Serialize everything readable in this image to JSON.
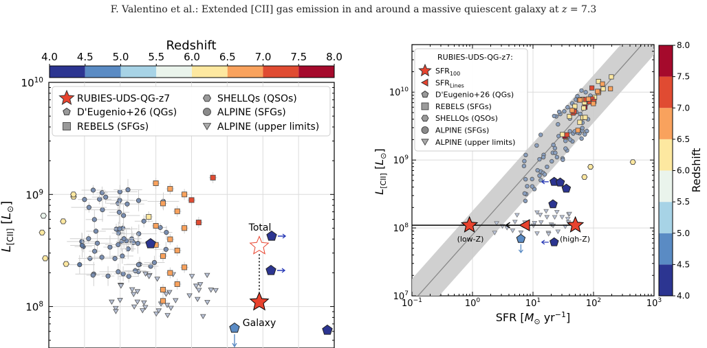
{
  "header": {
    "running_title": "F. Valentino et al.: Extended [CII] gas emission in and around a massive quiescent galaxy at",
    "z_symbol": "z",
    "z_value": "= 7.3"
  },
  "colors": {
    "redshift_bins": [
      "#2c3591",
      "#5a8bc4",
      "#a7d3e6",
      "#eaf4ec",
      "#fde8a0",
      "#f9a25d",
      "#e04b32",
      "#a50a2c"
    ],
    "agn_blue": "#2a3bb7",
    "band_gray": "#c8c8c8",
    "star_red": "#e8432e"
  },
  "chart_data": [
    {
      "id": "left",
      "type": "scatter",
      "title": "",
      "ylabel": "L_[CII] [L_⊙]",
      "yscale": "log",
      "ylim_exp": [
        7.63,
        10.0
      ],
      "yticks": [
        {
          "exp": 8,
          "label": "10",
          "sup": "8"
        },
        {
          "exp": 9,
          "label": "10",
          "sup": "9"
        },
        {
          "exp": 10,
          "label": "10",
          "sup": "10"
        }
      ],
      "colorbar": {
        "title": "Redshift",
        "ticks": [
          "4.0",
          "4.5",
          "5.0",
          "5.5",
          "6.0",
          "6.5",
          "7.0",
          "7.5",
          "8.0"
        ],
        "orientation": "horizontal"
      },
      "legend": {
        "position": "top",
        "entries": [
          {
            "label": "RUBIES-UDS-QG-z7",
            "marker": "star"
          },
          {
            "label": "D'Eugenio+26 (QGs)",
            "marker": "pentagon"
          },
          {
            "label": "REBELS (SFGs)",
            "marker": "square"
          },
          {
            "label": "SHELLQs (QSOs)",
            "marker": "hexagon"
          },
          {
            "label": "ALPINE (SFGs)",
            "marker": "circle"
          },
          {
            "label": "ALPINE (upper limits)",
            "marker": "triangle"
          }
        ]
      },
      "annotations": [
        {
          "text": "Total",
          "logL": 8.54
        },
        {
          "text": "Galaxy",
          "logL": 8.04
        }
      ],
      "rubies": {
        "total_logL": 8.54,
        "galaxy_logL": 8.04
      },
      "shellqs": [
        {
          "z": 6.1,
          "logL": 8.76
        },
        {
          "z": 6.2,
          "logL": 8.98
        },
        {
          "z": 6.3,
          "logL": 9.0
        },
        {
          "z": 6.1,
          "logL": 8.66
        },
        {
          "z": 6.2,
          "logL": 8.43
        },
        {
          "z": 6.2,
          "logL": 8.38
        },
        {
          "z": 5.9,
          "logL": 8.81
        }
      ]
    },
    {
      "id": "right",
      "type": "scatter",
      "title": "",
      "xlabel": "SFR [M_⊙ yr^-1]",
      "ylabel": "L_[CII] [L_⊙]",
      "xscale": "log",
      "yscale": "log",
      "xlim_exp": [
        -1,
        3
      ],
      "ylim_exp": [
        7,
        10.7
      ],
      "xticks": [
        {
          "exp": -1,
          "label": "10",
          "sup": "−1"
        },
        {
          "exp": 0,
          "label": "10",
          "sup": "0"
        },
        {
          "exp": 1,
          "label": "10",
          "sup": "1"
        },
        {
          "exp": 2,
          "label": "10",
          "sup": "2"
        },
        {
          "exp": 3,
          "label": "10",
          "sup": "3"
        }
      ],
      "yticks": [
        {
          "exp": 7,
          "label": "10",
          "sup": "7"
        },
        {
          "exp": 8,
          "label": "10",
          "sup": "8"
        },
        {
          "exp": 9,
          "label": "10",
          "sup": "9"
        },
        {
          "exp": 10,
          "label": "10",
          "sup": "10"
        }
      ],
      "colorbar": {
        "title": "Redshift",
        "ticks": [
          "4.0",
          "4.5",
          "5.0",
          "5.5",
          "6.0",
          "6.5",
          "7.0",
          "7.5",
          "8.0"
        ],
        "orientation": "vertical"
      },
      "legend": {
        "position": "top-left",
        "title": "RUBIES-UDS-QG-z7:",
        "entries": [
          {
            "label": "SFR",
            "sub": "100",
            "marker": "star"
          },
          {
            "label": "SFR",
            "sub": "Lines",
            "marker": "left-triangle"
          },
          {
            "label": "D'Eugenio+26 (QGs)",
            "marker": "pentagon"
          },
          {
            "label": "REBELS (SFGs)",
            "marker": "square"
          },
          {
            "label": "SHELLQs (QSOs)",
            "marker": "hexagon"
          },
          {
            "label": "ALPINE (SFGs)",
            "marker": "circle"
          },
          {
            "label": "ALPINE (upper limits)",
            "marker": "triangle"
          }
        ]
      },
      "relation": {
        "intercept": 7.9,
        "slope": 1.0,
        "band_halfwidth": 0.35
      },
      "rubies": [
        {
          "label": "(low-Z)",
          "sfr_exp": -0.05,
          "logL": 8.04
        },
        {
          "label": "(high-Z)",
          "sfr_exp": 1.7,
          "logL": 8.04
        },
        {
          "label": "SFR_Lines",
          "sfr_exp": 0.87,
          "logL": 8.04
        }
      ],
      "shellqs": [
        {
          "sfr_exp": 2.65,
          "logL": 8.97,
          "z": 6.2
        },
        {
          "sfr_exp": 1.95,
          "logL": 8.9,
          "z": 6.3
        },
        {
          "sfr_exp": 1.85,
          "logL": 8.75,
          "z": 6.1
        }
      ]
    }
  ]
}
